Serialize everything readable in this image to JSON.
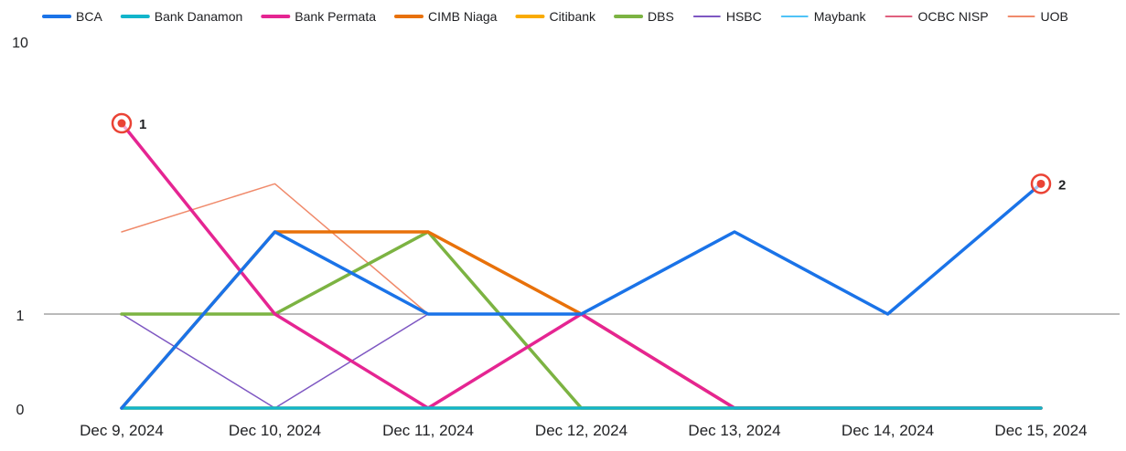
{
  "chart_data": {
    "type": "line",
    "title": "",
    "xlabel": "",
    "ylabel": "",
    "y_scale": "symlog",
    "ylim": [
      0,
      10
    ],
    "yticks": [
      "0",
      "1",
      "10"
    ],
    "grid": "baseline-at-1",
    "legend_position": "top",
    "categories": [
      "Dec 9, 2024",
      "Dec 10, 2024",
      "Dec 11, 2024",
      "Dec 12, 2024",
      "Dec 13, 2024",
      "Dec 14, 2024",
      "Dec 15, 2024"
    ],
    "series": [
      {
        "name": "BCA",
        "color": "#1a73e8",
        "width": "thick",
        "values": [
          0,
          2,
          1,
          1,
          2,
          1,
          3
        ]
      },
      {
        "name": "Bank Danamon",
        "color": "#12b5cb",
        "width": "thick",
        "values": [
          0,
          0,
          0,
          0,
          0,
          0,
          0
        ]
      },
      {
        "name": "Bank Permata",
        "color": "#e52592",
        "width": "thick",
        "values": [
          5,
          1,
          0,
          1,
          0,
          0,
          0
        ]
      },
      {
        "name": "CIMB Niaga",
        "color": "#e8710a",
        "width": "thick",
        "values": [
          0,
          2,
          2,
          1,
          0,
          0,
          0
        ]
      },
      {
        "name": "Citibank",
        "color": "#f9ab00",
        "width": "thick",
        "values": [
          0,
          0,
          0,
          0,
          0,
          0,
          0
        ]
      },
      {
        "name": "DBS",
        "color": "#7cb342",
        "width": "thick",
        "values": [
          1,
          1,
          2,
          0,
          0,
          0,
          0
        ]
      },
      {
        "name": "HSBC",
        "color": "#7e57c2",
        "width": "thin",
        "values": [
          1,
          0,
          1,
          1,
          0,
          0,
          0
        ]
      },
      {
        "name": "Maybank",
        "color": "#4fc3f7",
        "width": "thin",
        "values": [
          0,
          0,
          0,
          0,
          0,
          0,
          0
        ]
      },
      {
        "name": "OCBC NISP",
        "color": "#e0607e",
        "width": "thin",
        "values": [
          0,
          0,
          0,
          0,
          0,
          0,
          0
        ]
      },
      {
        "name": "UOB",
        "color": "#f08a6b",
        "width": "thin",
        "values": [
          2,
          3,
          1,
          1,
          0,
          0,
          0
        ]
      }
    ],
    "annotations": [
      {
        "label": "1",
        "series": "Bank Permata",
        "category": "Dec 9, 2024",
        "value": 5
      },
      {
        "label": "2",
        "series": "BCA",
        "category": "Dec 15, 2024",
        "value": 3
      }
    ],
    "annotation_color": "#ea4335",
    "baseline_color": "#757575",
    "text_color": "#202124"
  }
}
